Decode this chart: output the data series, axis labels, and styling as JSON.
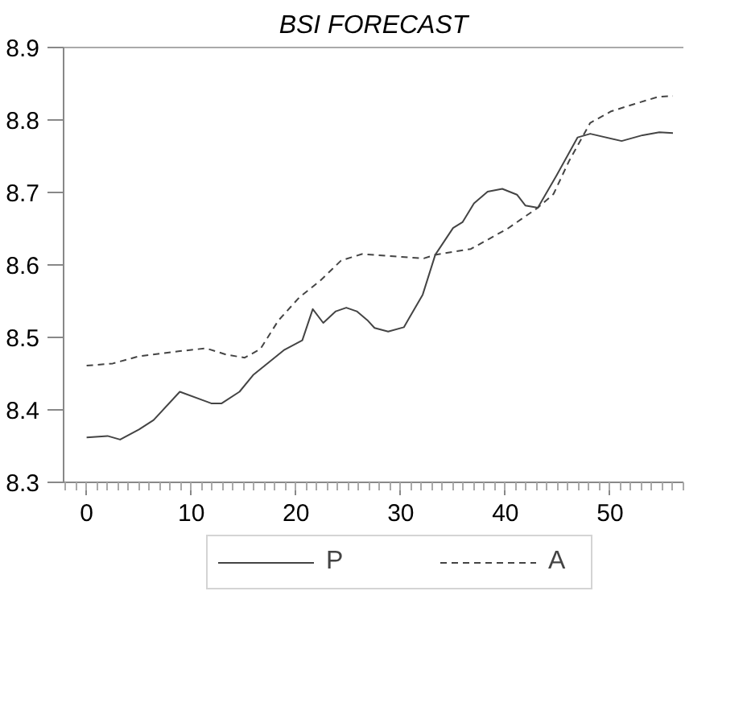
{
  "chart_data": {
    "type": "line",
    "title": "BSI FORECAST",
    "xlim": [
      -2.2,
      57
    ],
    "ylim": [
      8.3,
      8.9
    ],
    "xticks": [
      0,
      10,
      20,
      30,
      40,
      50
    ],
    "yticks": [
      8.3,
      8.4,
      8.5,
      8.6,
      8.7,
      8.8,
      8.9
    ],
    "grid": false,
    "legend": "bottom",
    "marker": "none",
    "series": [
      {
        "name": "P",
        "color": "#444444",
        "line_style": "solid",
        "x": [
          0,
          2,
          3.2,
          5,
          6.4,
          8.9,
          11.9,
          12.9,
          14.6,
          15.9,
          18.9,
          20.6,
          21.6,
          22.6,
          23.8,
          24.8,
          25.8,
          26.8,
          27.5,
          28.8,
          30.3,
          32.1,
          33.3,
          35,
          35.9,
          37,
          38.3,
          39.7,
          41.1,
          41.9,
          43.1,
          44.9,
          46.9,
          48.1,
          51.1,
          53.1,
          54.7,
          56
        ],
        "values": [
          8.362,
          8.364,
          8.359,
          8.373,
          8.386,
          8.425,
          8.409,
          8.409,
          8.425,
          8.448,
          8.483,
          8.496,
          8.539,
          8.52,
          8.536,
          8.541,
          8.536,
          8.524,
          8.513,
          8.508,
          8.514,
          8.559,
          8.614,
          8.651,
          8.659,
          8.685,
          8.701,
          8.705,
          8.697,
          8.682,
          8.679,
          8.724,
          8.776,
          8.781,
          8.771,
          8.779,
          8.783,
          8.782
        ]
      },
      {
        "name": "A",
        "color": "#444444",
        "line_style": "dashed",
        "x": [
          0,
          2.5,
          5,
          8.9,
          11.4,
          13.4,
          15.1,
          16.6,
          18.3,
          20.3,
          22.3,
          24.3,
          26.3,
          29.3,
          32.2,
          33.3,
          36.7,
          40.2,
          43.1,
          44.6,
          46.1,
          48.1,
          50.1,
          52.3,
          54.6,
          56
        ],
        "values": [
          8.461,
          8.464,
          8.474,
          8.481,
          8.485,
          8.476,
          8.472,
          8.484,
          8.523,
          8.555,
          8.578,
          8.606,
          8.615,
          8.612,
          8.609,
          8.614,
          8.622,
          8.65,
          8.679,
          8.698,
          8.744,
          8.796,
          8.812,
          8.822,
          8.832,
          8.833
        ]
      }
    ]
  }
}
